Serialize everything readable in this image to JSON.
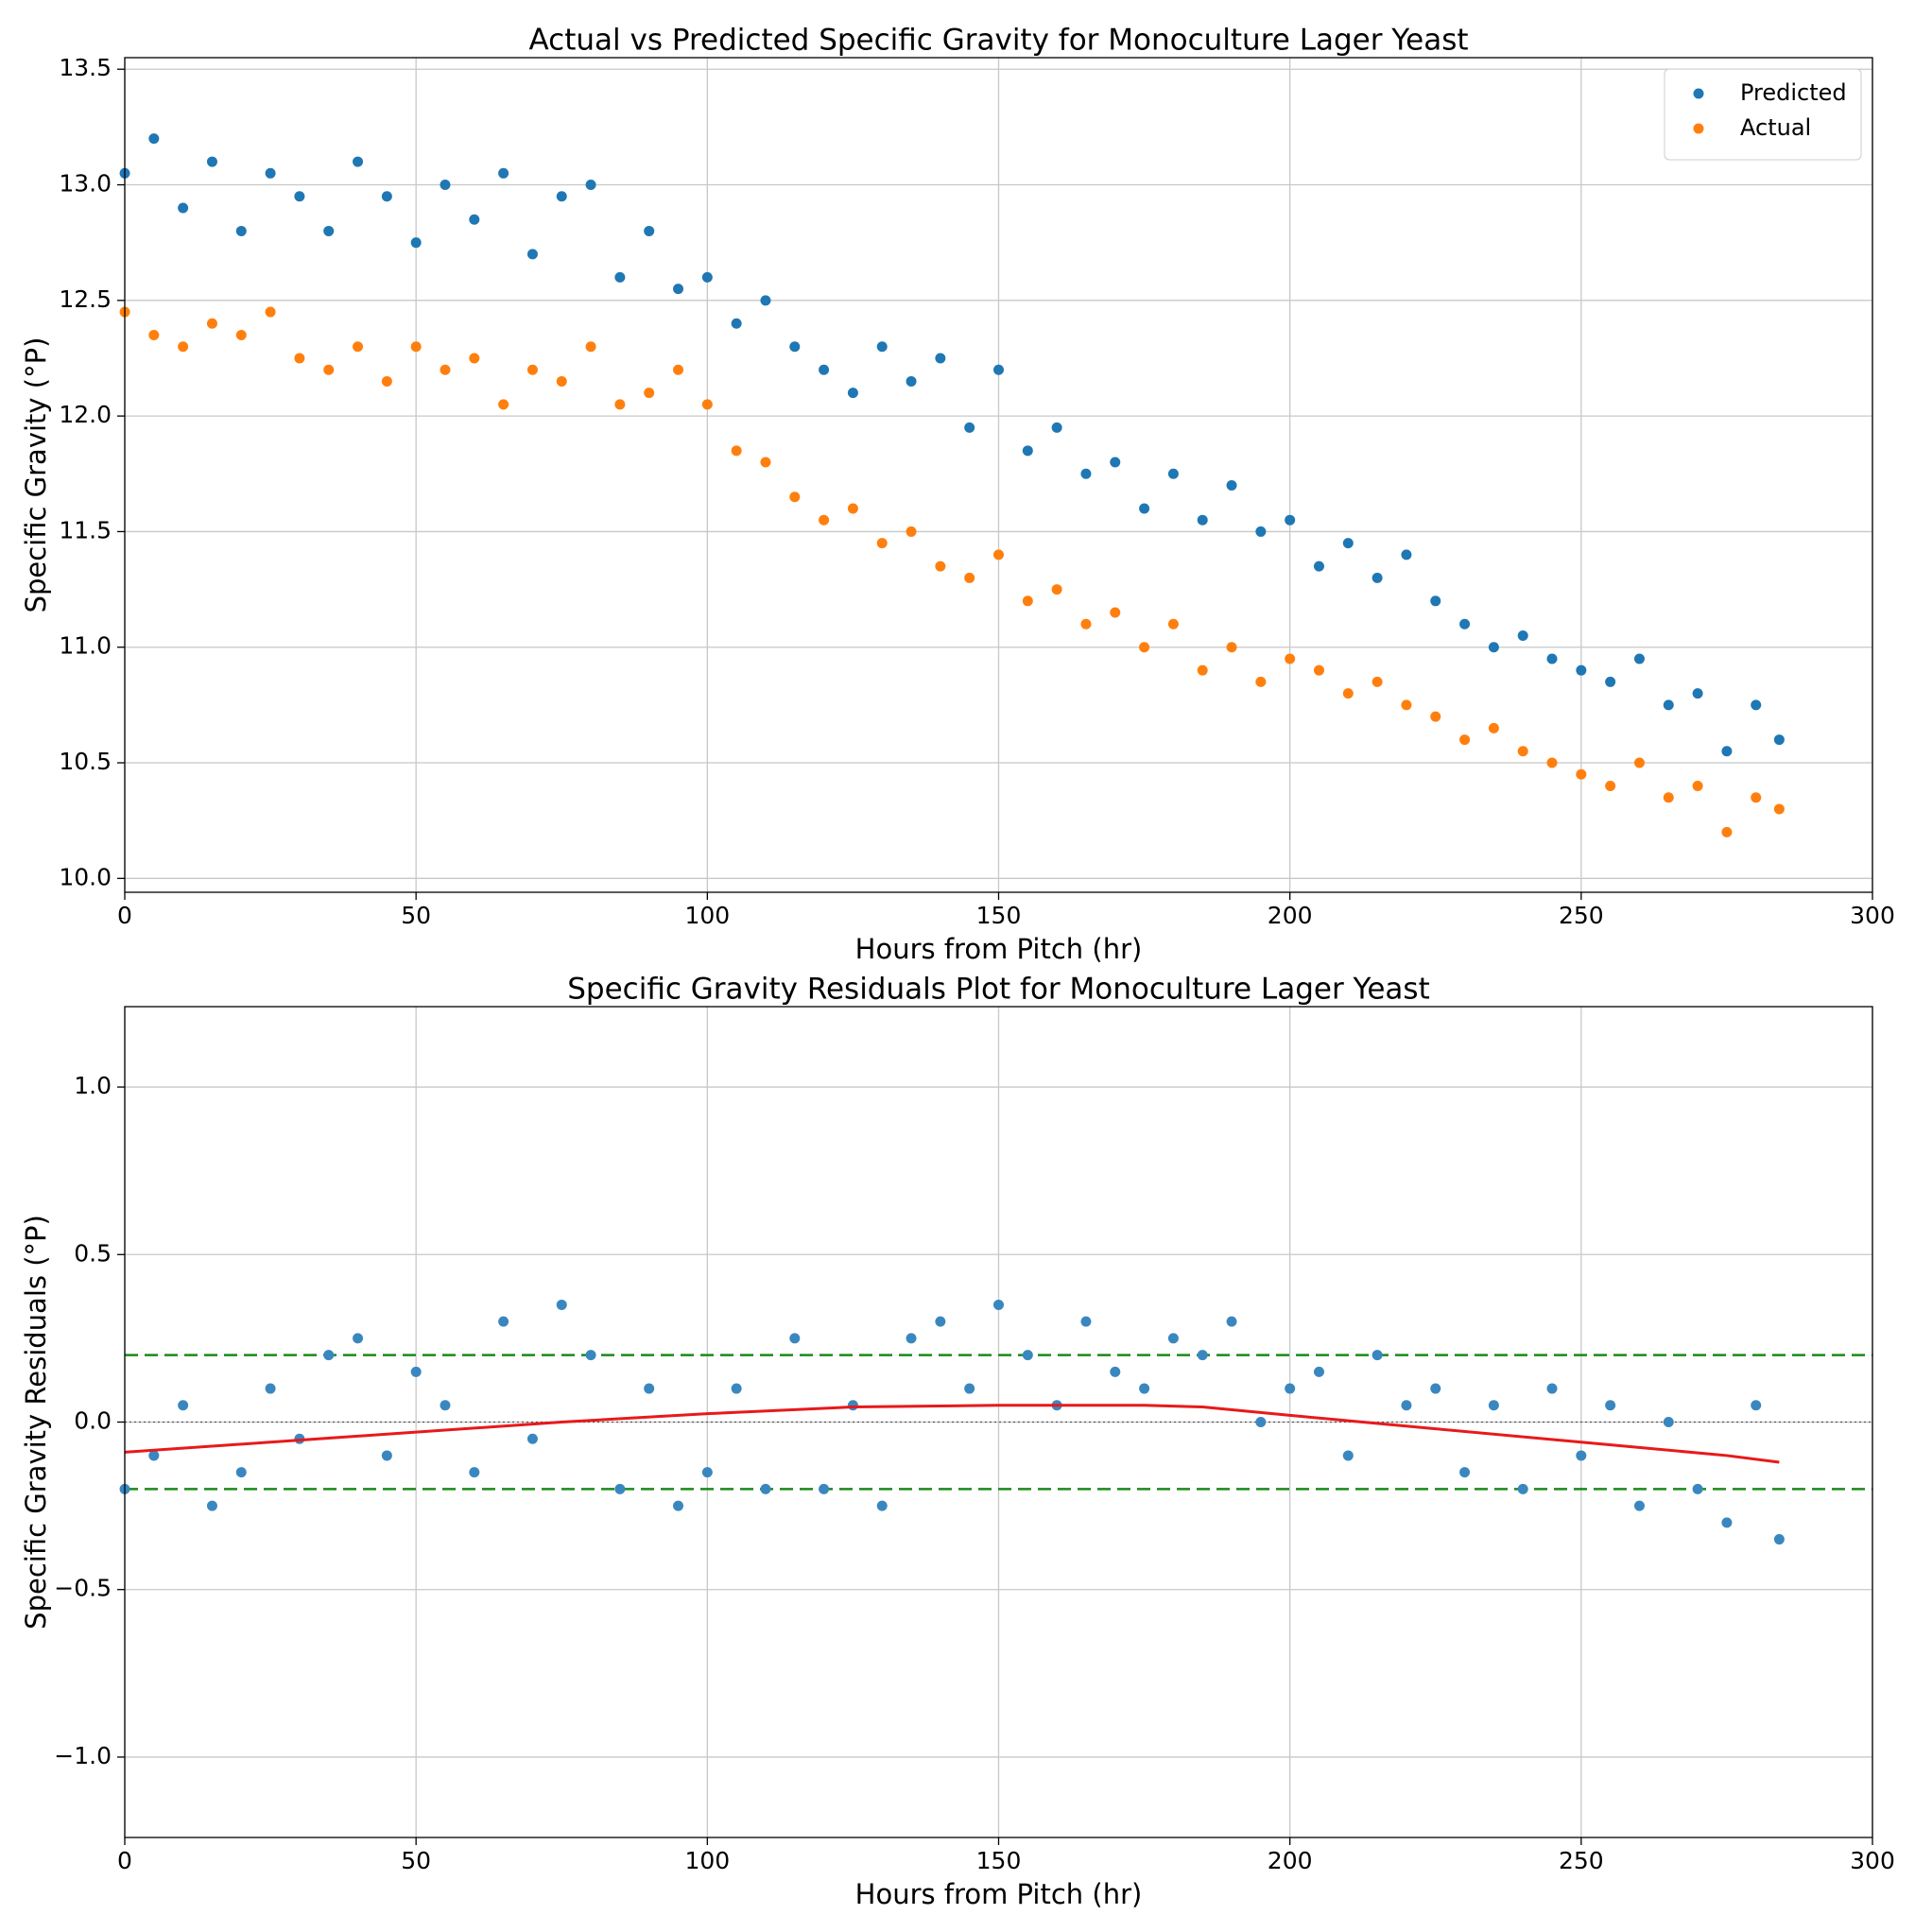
{
  "chart_data": [
    {
      "type": "scatter",
      "title": "Actual vs Predicted Specific Gravity for Monoculture Lager Yeast",
      "x_label": "Hours from Pitch (hr)",
      "y_label": "Specific Gravity (°P)",
      "x": [
        0,
        5,
        10,
        15,
        20,
        25,
        30,
        35,
        40,
        45,
        50,
        55,
        60,
        65,
        70,
        75,
        80,
        85,
        90,
        95,
        100,
        105,
        110,
        115,
        120,
        125,
        130,
        135,
        140,
        145,
        150,
        155,
        160,
        165,
        170,
        175,
        180,
        185,
        190,
        195,
        200,
        205,
        210,
        215,
        220,
        225,
        230,
        235,
        240,
        245,
        250,
        255,
        260,
        265,
        270,
        275,
        280,
        284
      ],
      "series": [
        {
          "name": "Predicted",
          "color": "#1f77b4",
          "mode": "markers",
          "values": [
            13.05,
            13.2,
            12.9,
            13.1,
            12.8,
            13.05,
            12.95,
            12.8,
            13.1,
            12.95,
            12.75,
            13.0,
            12.85,
            13.05,
            12.7,
            12.95,
            13.0,
            12.6,
            12.8,
            12.55,
            12.6,
            12.4,
            12.5,
            12.3,
            12.2,
            12.1,
            12.3,
            12.15,
            12.25,
            11.95,
            12.2,
            11.85,
            11.95,
            11.75,
            11.8,
            11.6,
            11.75,
            11.55,
            11.7,
            11.5,
            11.55,
            11.35,
            11.45,
            11.3,
            11.4,
            11.2,
            11.1,
            11.0,
            11.05,
            10.95,
            10.9,
            10.85,
            10.95,
            10.75,
            10.8,
            10.55,
            10.75,
            10.6
          ]
        },
        {
          "name": "Actual",
          "color": "#ff7f0e",
          "mode": "markers",
          "values": [
            12.45,
            12.35,
            12.3,
            12.4,
            12.35,
            12.45,
            12.25,
            12.2,
            12.3,
            12.15,
            12.3,
            12.2,
            12.25,
            12.05,
            12.2,
            12.15,
            12.3,
            12.05,
            12.1,
            12.2,
            12.05,
            11.85,
            11.8,
            11.65,
            11.55,
            11.6,
            11.45,
            11.5,
            11.35,
            11.3,
            11.4,
            11.2,
            11.25,
            11.1,
            11.15,
            11.0,
            11.1,
            10.9,
            11.0,
            10.85,
            10.95,
            10.9,
            10.8,
            10.85,
            10.75,
            10.7,
            10.6,
            10.65,
            10.55,
            10.5,
            10.45,
            10.4,
            10.5,
            10.35,
            10.4,
            10.2,
            10.35,
            10.3
          ]
        }
      ],
      "xlim": [
        0,
        300
      ],
      "xticks": [
        0,
        50,
        100,
        150,
        200,
        250,
        300
      ],
      "ylim": [
        9.94,
        13.55
      ],
      "yticks": [
        {
          "value": 10,
          "label": "10.0"
        },
        10.5,
        {
          "value": 11,
          "label": "11.0"
        },
        11.5,
        {
          "value": 12,
          "label": "12.0"
        },
        12.5,
        {
          "value": 13,
          "label": "13.0"
        },
        13.5
      ],
      "grid": true,
      "legend": "upper right"
    },
    {
      "type": "scatter",
      "title": "Specific Gravity Residuals Plot for Monoculture Lager Yeast",
      "x_label": "Hours from Pitch (hr)",
      "y_label": "Specific Gravity Residuals (°P)",
      "x": [
        0,
        5,
        10,
        15,
        20,
        25,
        30,
        35,
        40,
        45,
        50,
        55,
        60,
        65,
        70,
        75,
        80,
        85,
        90,
        95,
        100,
        105,
        110,
        115,
        120,
        125,
        130,
        135,
        140,
        145,
        150,
        155,
        160,
        165,
        170,
        175,
        180,
        185,
        190,
        195,
        200,
        205,
        210,
        215,
        220,
        225,
        230,
        235,
        240,
        245,
        250,
        255,
        260,
        265,
        270,
        275,
        280,
        284
      ],
      "series": [
        {
          "color": "#3a87c0",
          "mode": "markers",
          "values": [
            -0.2,
            -0.1,
            0.05,
            -0.25,
            -0.15,
            0.1,
            -0.05,
            0.2,
            0.25,
            -0.1,
            0.15,
            0.05,
            -0.15,
            0.3,
            -0.05,
            0.35,
            0.2,
            -0.2,
            0.1,
            -0.25,
            -0.15,
            0.1,
            -0.2,
            0.25,
            -0.2,
            0.05,
            -0.25,
            0.25,
            0.3,
            0.1,
            0.35,
            0.2,
            0.05,
            0.3,
            0.15,
            0.1,
            0.25,
            0.2,
            0.3,
            0.0,
            0.1,
            0.15,
            -0.1,
            0.2,
            0.05,
            0.1,
            -0.15,
            0.05,
            -0.2,
            0.1,
            -0.1,
            0.05,
            -0.25,
            0.0,
            -0.2,
            -0.3,
            0.05,
            -0.35
          ]
        },
        {
          "color": "#e8191b",
          "mode": "line",
          "x": [
            0,
            25,
            50,
            75,
            100,
            125,
            150,
            175,
            185,
            200,
            225,
            250,
            275,
            284
          ],
          "values": [
            -0.09,
            -0.06,
            -0.03,
            0.0,
            0.025,
            0.045,
            0.05,
            0.05,
            0.045,
            0.02,
            -0.02,
            -0.06,
            -0.1,
            -0.12
          ]
        }
      ],
      "reference_lines": [
        {
          "value": 0.2,
          "color": "#1a8a1a",
          "style": "dashed"
        },
        {
          "value": -0.2,
          "color": "#1a8a1a",
          "style": "dashed"
        },
        {
          "value": 0,
          "color": "#555555",
          "style": "dotted"
        }
      ],
      "xlim": [
        0,
        300
      ],
      "xticks": [
        0,
        50,
        100,
        150,
        200,
        250,
        300
      ],
      "ylim": [
        -1.24,
        1.24
      ],
      "yticks": [
        {
          "value": -1,
          "label": "−1.0"
        },
        {
          "value": -0.5,
          "label": "−0.5"
        },
        {
          "value": 0,
          "label": "0.0"
        },
        {
          "value": 0.5,
          "label": "0.5"
        },
        {
          "value": 1,
          "label": "1.0"
        }
      ],
      "grid": true
    }
  ]
}
